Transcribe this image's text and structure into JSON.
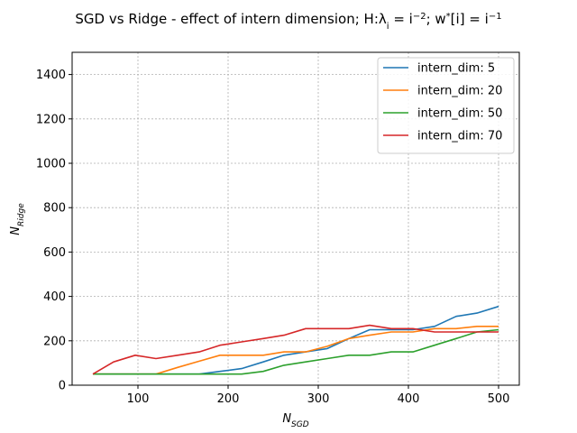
{
  "chart_data": {
    "type": "line",
    "title": "SGD vs Ridge - effect of intern dimension; H:λ",
    "title_sub": "i",
    "title_mid": " = i",
    "title_sup": "−2",
    "title_mid2": "; w",
    "title_sup2": "*",
    "title_end": "[i] = i",
    "title_sup3": "−1",
    "xlabel": "N",
    "xlabel_sub": "SGD",
    "ylabel": "N",
    "ylabel_sub": "Ridge",
    "xlim": [
      27,
      523
    ],
    "ylim": [
      0,
      1500
    ],
    "xticks": [
      100,
      200,
      300,
      400,
      500
    ],
    "yticks": [
      0,
      200,
      400,
      600,
      800,
      1000,
      1200,
      1400
    ],
    "grid": true,
    "legend_position": "top-right",
    "x": [
      50,
      73,
      97,
      120,
      144,
      168,
      191,
      215,
      239,
      262,
      286,
      310,
      334,
      357,
      381,
      405,
      429,
      453,
      476,
      500
    ],
    "series": [
      {
        "name": "intern_dim: 5",
        "color": "#1f77b4",
        "values": [
          50,
          50,
          50,
          50,
          50,
          50,
          62,
          75,
          105,
          135,
          150,
          165,
          210,
          250,
          250,
          250,
          265,
          310,
          325,
          355
        ]
      },
      {
        "name": "intern_dim: 20",
        "color": "#ff7f0e",
        "values": [
          50,
          50,
          50,
          50,
          80,
          108,
          135,
          135,
          135,
          150,
          150,
          175,
          210,
          225,
          240,
          240,
          255,
          255,
          265,
          265
        ]
      },
      {
        "name": "intern_dim: 50",
        "color": "#2ca02c",
        "values": [
          50,
          50,
          50,
          50,
          50,
          50,
          50,
          50,
          62,
          90,
          105,
          120,
          135,
          135,
          150,
          150,
          180,
          210,
          240,
          250
        ]
      },
      {
        "name": "intern_dim: 70",
        "color": "#d62728",
        "values": [
          50,
          105,
          135,
          120,
          135,
          150,
          180,
          195,
          210,
          225,
          255,
          255,
          255,
          270,
          255,
          255,
          240,
          240,
          240,
          240
        ]
      }
    ]
  }
}
